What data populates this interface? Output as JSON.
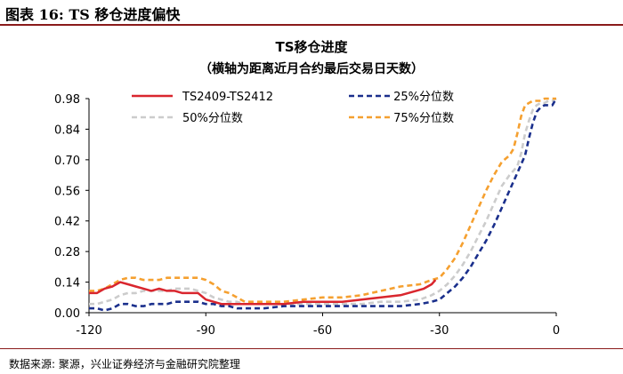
{
  "figure": {
    "label": "图表 16:  TS 移仓进度偏快",
    "source": "数据来源: 聚源，兴业证券经济与金融研究院整理"
  },
  "chart_data": {
    "type": "line",
    "title": "TS移仓进度",
    "subtitle": "（横轴为距离近月合约最后交易日天数）",
    "xlim": [
      -120,
      0
    ],
    "ylim": [
      0,
      0.98
    ],
    "xticks": [
      -120,
      -90,
      -60,
      -30,
      0
    ],
    "xtick_labels": [
      "-120",
      "-90",
      "-60",
      "-30",
      "0"
    ],
    "yticks": [
      0.0,
      0.14,
      0.28,
      0.42,
      0.56,
      0.7,
      0.84,
      0.98
    ],
    "ytick_labels": [
      "0.00",
      "0.14",
      "0.28",
      "0.42",
      "0.56",
      "0.70",
      "0.84",
      "0.98"
    ],
    "grid": false,
    "legend_position": "top",
    "series": [
      {
        "name": "TS2409-TS2412",
        "color": "#d9262e",
        "dash": "solid",
        "x": [
          -120,
          -118,
          -116,
          -114,
          -112,
          -110,
          -108,
          -106,
          -104,
          -102,
          -100,
          -98,
          -96,
          -94,
          -92,
          -90,
          -88,
          -86,
          -84,
          -82,
          -80,
          -75,
          -70,
          -65,
          -60,
          -55,
          -50,
          -45,
          -40,
          -36,
          -34,
          -32,
          -31
        ],
        "y": [
          0.09,
          0.09,
          0.11,
          0.12,
          0.14,
          0.13,
          0.12,
          0.11,
          0.1,
          0.11,
          0.1,
          0.1,
          0.09,
          0.09,
          0.09,
          0.06,
          0.05,
          0.04,
          0.04,
          0.04,
          0.04,
          0.04,
          0.04,
          0.05,
          0.05,
          0.05,
          0.06,
          0.07,
          0.08,
          0.1,
          0.11,
          0.13,
          0.15
        ]
      },
      {
        "name": "25%分位数",
        "color": "#1a2f8c",
        "dash": "6,4",
        "x": [
          -120,
          -118,
          -116,
          -114,
          -112,
          -110,
          -108,
          -106,
          -104,
          -102,
          -100,
          -98,
          -96,
          -94,
          -92,
          -90,
          -88,
          -86,
          -84,
          -82,
          -80,
          -75,
          -70,
          -65,
          -60,
          -55,
          -50,
          -45,
          -40,
          -35,
          -32,
          -30,
          -28,
          -26,
          -24,
          -22,
          -20,
          -18,
          -16,
          -14,
          -12,
          -10,
          -8,
          -7,
          -6,
          -5,
          -4,
          -3,
          -2,
          -1,
          0
        ],
        "y": [
          0.02,
          0.02,
          0.01,
          0.02,
          0.04,
          0.04,
          0.03,
          0.03,
          0.04,
          0.04,
          0.04,
          0.05,
          0.05,
          0.05,
          0.05,
          0.04,
          0.04,
          0.03,
          0.03,
          0.02,
          0.02,
          0.02,
          0.03,
          0.03,
          0.03,
          0.03,
          0.03,
          0.03,
          0.03,
          0.04,
          0.05,
          0.06,
          0.09,
          0.12,
          0.16,
          0.21,
          0.27,
          0.33,
          0.4,
          0.48,
          0.56,
          0.64,
          0.72,
          0.8,
          0.87,
          0.92,
          0.94,
          0.95,
          0.95,
          0.95,
          0.98
        ]
      },
      {
        "name": "50%分位数",
        "color": "#cccccc",
        "dash": "6,4",
        "x": [
          -120,
          -118,
          -116,
          -114,
          -112,
          -110,
          -108,
          -106,
          -104,
          -102,
          -100,
          -98,
          -96,
          -94,
          -92,
          -90,
          -88,
          -86,
          -84,
          -82,
          -80,
          -75,
          -70,
          -65,
          -60,
          -55,
          -50,
          -45,
          -40,
          -35,
          -32,
          -30,
          -28,
          -26,
          -24,
          -22,
          -20,
          -18,
          -16,
          -14,
          -12,
          -10,
          -9,
          -8,
          -7,
          -6,
          -5,
          -4,
          -3,
          -2,
          -1,
          0
        ],
        "y": [
          0.04,
          0.04,
          0.05,
          0.06,
          0.08,
          0.09,
          0.09,
          0.1,
          0.1,
          0.1,
          0.1,
          0.11,
          0.11,
          0.11,
          0.1,
          0.09,
          0.07,
          0.06,
          0.05,
          0.05,
          0.04,
          0.04,
          0.04,
          0.04,
          0.04,
          0.04,
          0.04,
          0.05,
          0.05,
          0.06,
          0.08,
          0.1,
          0.13,
          0.17,
          0.22,
          0.28,
          0.35,
          0.42,
          0.5,
          0.58,
          0.63,
          0.67,
          0.73,
          0.82,
          0.88,
          0.93,
          0.95,
          0.96,
          0.96,
          0.97,
          0.97,
          0.98
        ]
      },
      {
        "name": "75%分位数",
        "color": "#f5a030",
        "dash": "6,4",
        "x": [
          -120,
          -118,
          -116,
          -114,
          -112,
          -110,
          -108,
          -106,
          -104,
          -102,
          -100,
          -98,
          -96,
          -94,
          -92,
          -90,
          -88,
          -86,
          -84,
          -82,
          -80,
          -75,
          -70,
          -65,
          -60,
          -55,
          -50,
          -45,
          -40,
          -35,
          -32,
          -30,
          -28,
          -26,
          -24,
          -22,
          -20,
          -18,
          -16,
          -14,
          -12,
          -11,
          -10,
          -9,
          -8,
          -7,
          -6,
          -5,
          -4,
          -3,
          -2,
          -1,
          0
        ],
        "y": [
          0.1,
          0.1,
          0.11,
          0.13,
          0.15,
          0.16,
          0.16,
          0.15,
          0.15,
          0.15,
          0.16,
          0.16,
          0.16,
          0.16,
          0.16,
          0.15,
          0.13,
          0.1,
          0.09,
          0.07,
          0.05,
          0.05,
          0.05,
          0.06,
          0.07,
          0.07,
          0.08,
          0.1,
          0.12,
          0.13,
          0.15,
          0.16,
          0.2,
          0.25,
          0.32,
          0.4,
          0.48,
          0.56,
          0.63,
          0.69,
          0.72,
          0.75,
          0.82,
          0.9,
          0.95,
          0.96,
          0.97,
          0.97,
          0.97,
          0.98,
          0.98,
          0.98,
          0.98
        ]
      }
    ]
  }
}
